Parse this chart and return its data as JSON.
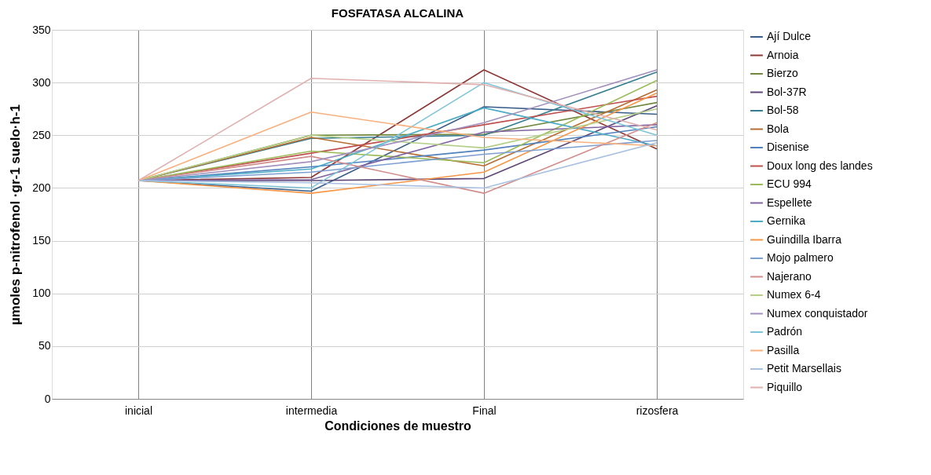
{
  "chart_data": {
    "type": "line",
    "title": "FOSFATASA ALCALINA",
    "xlabel": "Condiciones de muestro",
    "ylabel": "µmoles p-nitrofenol ·gr-1 suelo·h-1",
    "categories": [
      "inicial",
      "intermedia",
      "Final",
      "rizosfera"
    ],
    "ylim": [
      0,
      350
    ],
    "yticks": [
      0,
      50,
      100,
      150,
      200,
      250,
      300,
      350
    ],
    "grid": true,
    "legend": "right",
    "marker": "none",
    "line_style": "solid",
    "series": [
      {
        "name": "Ají Dulce",
        "color": "#385d8a",
        "values": [
          207,
          197,
          277,
          270
        ]
      },
      {
        "name": "Arnoia",
        "color": "#8c3836",
        "values": [
          207,
          210,
          312,
          237
        ]
      },
      {
        "name": "Bierzo",
        "color": "#71893f",
        "values": [
          207,
          250,
          251,
          281
        ]
      },
      {
        "name": "Bol-37R",
        "color": "#5c4776",
        "values": [
          207,
          207,
          209,
          278
        ]
      },
      {
        "name": "Bol-58",
        "color": "#357d91",
        "values": [
          207,
          247,
          250,
          310
        ]
      },
      {
        "name": "Bola",
        "color": "#b66d31",
        "values": [
          207,
          248,
          221,
          293
        ]
      },
      {
        "name": "Disenise",
        "color": "#4f81bd",
        "values": [
          207,
          220,
          236,
          258
        ]
      },
      {
        "name": "Doux long des landes",
        "color": "#c0504d",
        "values": [
          207,
          233,
          260,
          287
        ]
      },
      {
        "name": "ECU 994",
        "color": "#9bbb59",
        "values": [
          207,
          235,
          224,
          302
        ]
      },
      {
        "name": "Espellete",
        "color": "#8064a2",
        "values": [
          207,
          208,
          253,
          260
        ]
      },
      {
        "name": "Gernika",
        "color": "#4bacc6",
        "values": [
          207,
          218,
          276,
          240
        ]
      },
      {
        "name": "Guindilla Ibarra",
        "color": "#f79646",
        "values": [
          207,
          195,
          215,
          290
        ]
      },
      {
        "name": "Mojo palmero",
        "color": "#7c9fd2",
        "values": [
          207,
          215,
          232,
          245
        ]
      },
      {
        "name": "Najerano",
        "color": "#d28e8c",
        "values": [
          207,
          230,
          195,
          262
        ]
      },
      {
        "name": "Numex 6-4",
        "color": "#b4cf87",
        "values": [
          207,
          250,
          238,
          275
        ]
      },
      {
        "name": "Numex conquistador",
        "color": "#a18fbd",
        "values": [
          207,
          225,
          262,
          312
        ]
      },
      {
        "name": "Padrón",
        "color": "#7ec4d8",
        "values": [
          207,
          200,
          300,
          250
        ]
      },
      {
        "name": "Pasilla",
        "color": "#f9b07f",
        "values": [
          207,
          272,
          248,
          240
        ]
      },
      {
        "name": "Petit Marsellais",
        "color": "#a9c0e0",
        "values": [
          207,
          205,
          200,
          243
        ]
      },
      {
        "name": "Piquillo",
        "color": "#e0b1b0",
        "values": [
          207,
          304,
          298,
          255
        ]
      }
    ]
  }
}
